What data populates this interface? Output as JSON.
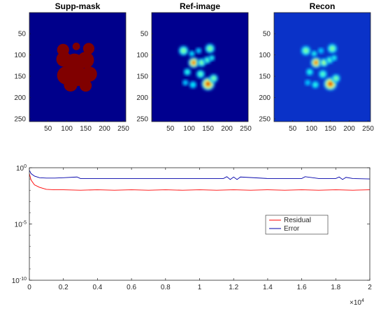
{
  "chart_data": [
    {
      "type": "heatmap",
      "title": "Supp-mask",
      "xticks": [
        50,
        100,
        150,
        200,
        250
      ],
      "yticks": [
        50,
        100,
        150,
        200,
        250
      ],
      "xlim": [
        0.5,
        256.5
      ],
      "ylim": [
        0.5,
        256.5
      ],
      "colormap": "jet",
      "background_color": "#00008b",
      "blobs": [
        {
          "x": 90,
          "y": 88,
          "r": 16,
          "v": 0.95
        },
        {
          "x": 125,
          "y": 80,
          "r": 10,
          "v": 0.95
        },
        {
          "x": 158,
          "y": 85,
          "r": 15,
          "v": 0.95
        },
        {
          "x": 92,
          "y": 110,
          "r": 20,
          "v": 0.95
        },
        {
          "x": 120,
          "y": 118,
          "r": 24,
          "v": 0.95
        },
        {
          "x": 150,
          "y": 112,
          "r": 22,
          "v": 0.95
        },
        {
          "x": 98,
          "y": 148,
          "r": 24,
          "v": 0.95
        },
        {
          "x": 130,
          "y": 150,
          "r": 26,
          "v": 0.95
        },
        {
          "x": 160,
          "y": 145,
          "r": 20,
          "v": 0.95
        },
        {
          "x": 110,
          "y": 170,
          "r": 18,
          "v": 0.95
        },
        {
          "x": 150,
          "y": 172,
          "r": 16,
          "v": 0.95
        }
      ]
    },
    {
      "type": "heatmap",
      "title": "Ref-image",
      "xticks": [
        50,
        100,
        150,
        200,
        250
      ],
      "yticks": [
        50,
        100,
        150,
        200,
        250
      ],
      "xlim": [
        0.5,
        256.5
      ],
      "ylim": [
        0.5,
        256.5
      ],
      "colormap": "jet",
      "background_color": "#00008f",
      "blobs": [
        {
          "x": 85,
          "y": 90,
          "r": 8,
          "v": 0.55
        },
        {
          "x": 107,
          "y": 97,
          "r": 5,
          "v": 0.4
        },
        {
          "x": 112,
          "y": 118,
          "r": 9,
          "v": 0.9
        },
        {
          "x": 133,
          "y": 118,
          "r": 7,
          "v": 0.55
        },
        {
          "x": 155,
          "y": 85,
          "r": 8,
          "v": 0.55
        },
        {
          "x": 148,
          "y": 112,
          "r": 6,
          "v": 0.5
        },
        {
          "x": 160,
          "y": 107,
          "r": 5,
          "v": 0.45
        },
        {
          "x": 95,
          "y": 140,
          "r": 6,
          "v": 0.45
        },
        {
          "x": 130,
          "y": 145,
          "r": 7,
          "v": 0.5
        },
        {
          "x": 150,
          "y": 168,
          "r": 11,
          "v": 0.95
        },
        {
          "x": 165,
          "y": 155,
          "r": 7,
          "v": 0.55
        },
        {
          "x": 110,
          "y": 170,
          "r": 6,
          "v": 0.4
        },
        {
          "x": 90,
          "y": 165,
          "r": 5,
          "v": 0.35
        },
        {
          "x": 125,
          "y": 90,
          "r": 5,
          "v": 0.35
        }
      ]
    },
    {
      "type": "heatmap",
      "title": "Recon",
      "xticks": [
        50,
        100,
        150,
        200,
        250
      ],
      "yticks": [
        50,
        100,
        150,
        200,
        250
      ],
      "xlim": [
        0.5,
        256.5
      ],
      "ylim": [
        0.5,
        256.5
      ],
      "colormap": "jet",
      "background_color": "#0a32c8",
      "blobs": [
        {
          "x": 85,
          "y": 90,
          "r": 8,
          "v": 0.55
        },
        {
          "x": 107,
          "y": 97,
          "r": 5,
          "v": 0.45
        },
        {
          "x": 112,
          "y": 118,
          "r": 9,
          "v": 0.9
        },
        {
          "x": 133,
          "y": 118,
          "r": 7,
          "v": 0.6
        },
        {
          "x": 155,
          "y": 85,
          "r": 8,
          "v": 0.55
        },
        {
          "x": 148,
          "y": 112,
          "r": 6,
          "v": 0.5
        },
        {
          "x": 160,
          "y": 107,
          "r": 5,
          "v": 0.45
        },
        {
          "x": 95,
          "y": 140,
          "r": 6,
          "v": 0.45
        },
        {
          "x": 130,
          "y": 145,
          "r": 7,
          "v": 0.5
        },
        {
          "x": 150,
          "y": 168,
          "r": 11,
          "v": 0.95
        },
        {
          "x": 165,
          "y": 155,
          "r": 7,
          "v": 0.55
        },
        {
          "x": 110,
          "y": 170,
          "r": 6,
          "v": 0.45
        },
        {
          "x": 90,
          "y": 165,
          "r": 5,
          "v": 0.35
        },
        {
          "x": 125,
          "y": 90,
          "r": 5,
          "v": 0.35
        }
      ]
    },
    {
      "type": "line",
      "y_scale": "log",
      "xlim": [
        0,
        20000
      ],
      "ylim": [
        1e-10,
        1
      ],
      "xticks": [
        0,
        0.2,
        0.4,
        0.6,
        0.8,
        1,
        1.2,
        1.4,
        1.6,
        1.8,
        2
      ],
      "x_multiplier_label": "×10^4",
      "x_multiplier_base": "×10",
      "x_multiplier_exp": "4",
      "yticks": [
        {
          "value": 1,
          "base": "10",
          "exp": "0"
        },
        {
          "value": 1e-05,
          "base": "10",
          "exp": "-5"
        },
        {
          "value": 1e-10,
          "base": "10",
          "exp": "-10"
        }
      ],
      "legend_position": "right-middle",
      "series": [
        {
          "name": "Residual",
          "color": "#ff0000",
          "x": [
            0,
            100,
            300,
            600,
            1000,
            1500,
            2000,
            3000,
            4000,
            5000,
            6000,
            7000,
            8000,
            9000,
            10000,
            11000,
            12000,
            13000,
            14000,
            15000,
            16000,
            17000,
            18000,
            19000,
            20000
          ],
          "y": [
            0.3,
            0.08,
            0.03,
            0.018,
            0.012,
            0.011,
            0.011,
            0.01,
            0.011,
            0.01,
            0.011,
            0.01,
            0.011,
            0.01,
            0.011,
            0.01,
            0.011,
            0.01,
            0.011,
            0.01,
            0.011,
            0.01,
            0.011,
            0.01,
            0.011
          ]
        },
        {
          "name": "Error",
          "color": "#0000aa",
          "x": [
            0,
            100,
            300,
            600,
            1000,
            1500,
            2000,
            2800,
            3000,
            5000,
            8000,
            10000,
            11400,
            11600,
            11800,
            12000,
            12200,
            12400,
            14000,
            16000,
            16200,
            17000,
            18000,
            18200,
            18400,
            18600,
            19000,
            20000
          ],
          "y": [
            0.6,
            0.3,
            0.18,
            0.13,
            0.12,
            0.12,
            0.13,
            0.15,
            0.11,
            0.11,
            0.11,
            0.11,
            0.11,
            0.16,
            0.09,
            0.15,
            0.09,
            0.15,
            0.11,
            0.11,
            0.16,
            0.11,
            0.11,
            0.15,
            0.09,
            0.14,
            0.11,
            0.1
          ]
        }
      ]
    }
  ]
}
